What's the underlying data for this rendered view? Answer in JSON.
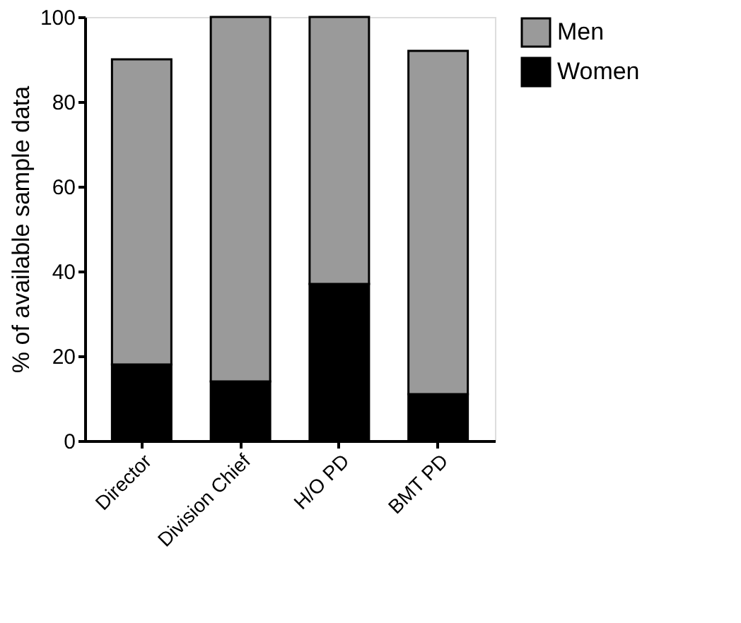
{
  "chart_data": {
    "type": "bar",
    "stacked": true,
    "ylabel": "% of available sample data",
    "categories": [
      "Director",
      "Division Chief",
      "H/O PD",
      "BMT PD"
    ],
    "series": [
      {
        "name": "Women",
        "color": "#000000",
        "values": [
          18,
          14,
          37,
          11
        ]
      },
      {
        "name": "Men",
        "color": "#9a9a9a",
        "values": [
          72,
          86,
          63,
          81
        ]
      }
    ],
    "ylim": [
      0,
      100
    ],
    "yticks": [
      0,
      20,
      40,
      60,
      80,
      100
    ],
    "grid": false,
    "legend": "top right"
  }
}
